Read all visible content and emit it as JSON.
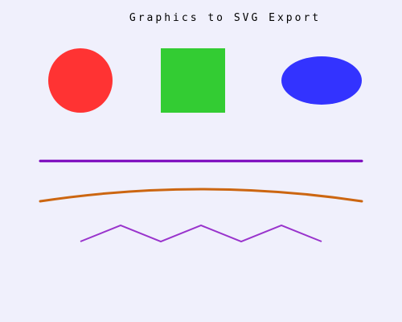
{
  "title": "Graphics to SVG Export",
  "colors": {
    "background": "#f0f0fc",
    "circle": "#ff3333",
    "square": "#33cc33",
    "ellipse": "#3333ff",
    "straight_line": "#7700bb",
    "curve": "#cc6611",
    "zigzag": "#9933cc"
  }
}
